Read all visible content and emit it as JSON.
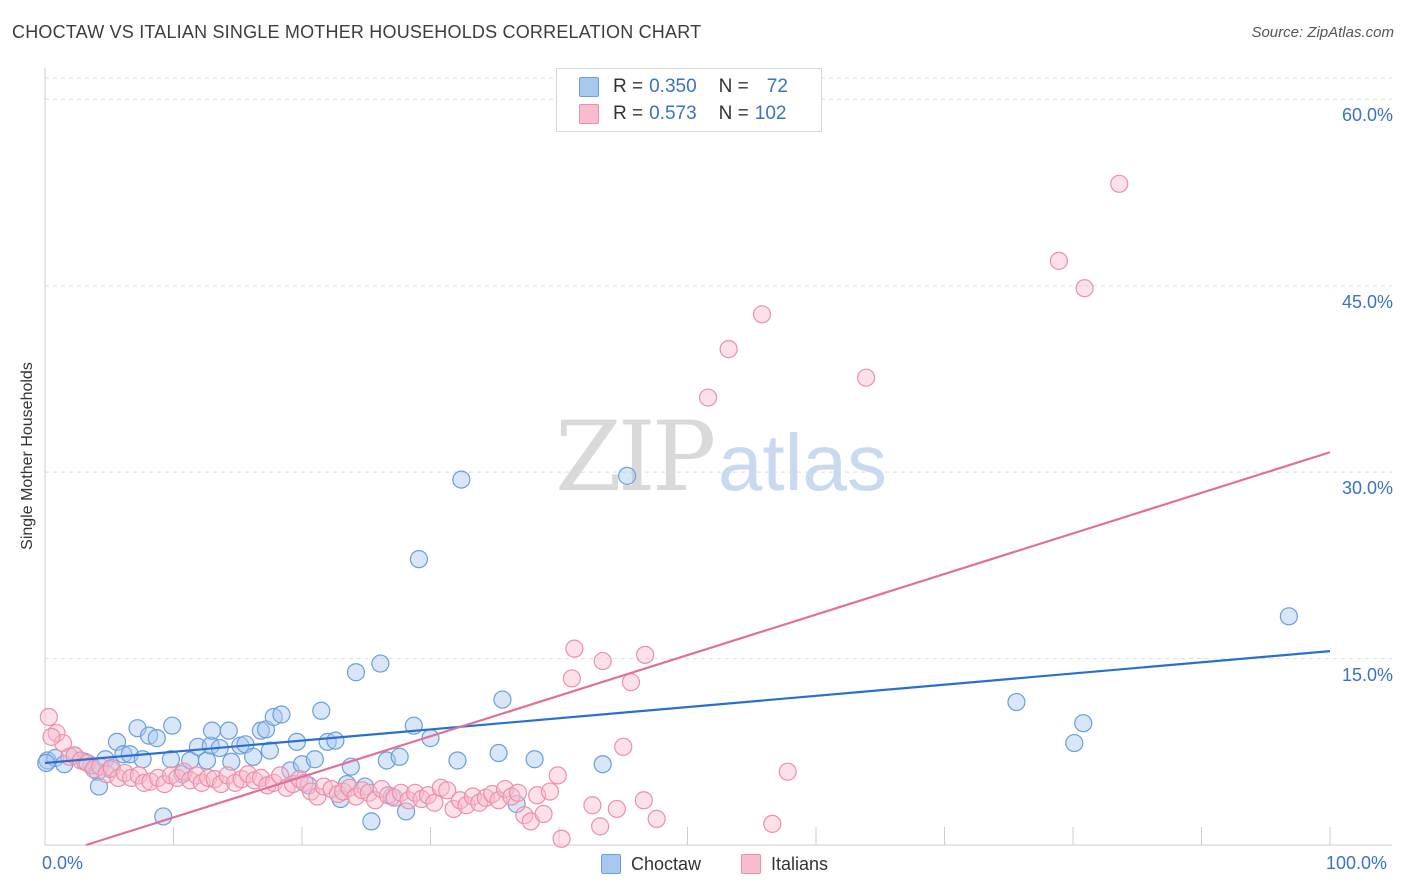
{
  "header": {
    "title": "CHOCTAW VS ITALIAN SINGLE MOTHER HOUSEHOLDS CORRELATION CHART",
    "source": "Source: ZipAtlas.com"
  },
  "watermark": {
    "zip": "ZIP",
    "atlas": "atlas"
  },
  "legend": {
    "choctaw": {
      "r_label": "R =",
      "r_value": "0.350",
      "n_label": "N =",
      "n_value": "72"
    },
    "italians": {
      "r_label": "R =",
      "r_value": "0.573",
      "n_label": "N =",
      "n_value": "102"
    }
  },
  "colors": {
    "choctaw_fill": "#a9c8f0",
    "choctaw_stroke": "#6a9fdc",
    "choctaw_line": "#2a6fcf",
    "italians_fill": "#f8bccd",
    "italians_stroke": "#ec8fab",
    "italians_line": "#e0709a",
    "grid": "#dddddd",
    "tick_text": "#3a72c4"
  },
  "chart_data": {
    "type": "scatter",
    "title": "CHOCTAW VS ITALIAN SINGLE MOTHER HOUSEHOLDS CORRELATION CHART",
    "xlabel": "",
    "ylabel": "Single Mother Households",
    "xlim": [
      0,
      100
    ],
    "ylim": [
      0,
      63
    ],
    "x_ticks": [
      "0.0%",
      "100.0%"
    ],
    "y_ticks": [
      {
        "value": 15,
        "label": "15.0%"
      },
      {
        "value": 30,
        "label": "30.0%"
      },
      {
        "value": 45,
        "label": "45.0%"
      },
      {
        "value": 60,
        "label": "60.0%"
      }
    ],
    "series": [
      {
        "name": "Choctaw",
        "trend": [
          [
            0,
            6.6
          ],
          [
            100,
            15.6
          ]
        ],
        "points": [
          [
            0.2,
            6.8
          ],
          [
            0.8,
            7.0
          ],
          [
            1.5,
            6.5
          ],
          [
            2.3,
            7.2
          ],
          [
            3.1,
            6.7
          ],
          [
            3.6,
            6.4
          ],
          [
            4.1,
            5.9
          ],
          [
            4.2,
            4.7
          ],
          [
            4.7,
            6.9
          ],
          [
            5.1,
            6.1
          ],
          [
            5.6,
            8.3
          ],
          [
            6.1,
            7.3
          ],
          [
            6.6,
            7.3
          ],
          [
            7.2,
            9.4
          ],
          [
            7.6,
            6.9
          ],
          [
            8.1,
            8.8
          ],
          [
            8.7,
            8.6
          ],
          [
            9.2,
            2.3
          ],
          [
            9.8,
            6.9
          ],
          [
            9.9,
            9.6
          ],
          [
            10.7,
            5.7
          ],
          [
            11.3,
            6.8
          ],
          [
            11.9,
            7.9
          ],
          [
            12.6,
            6.8
          ],
          [
            12.9,
            8.0
          ],
          [
            13.0,
            9.2
          ],
          [
            13.6,
            7.8
          ],
          [
            14.3,
            9.2
          ],
          [
            14.5,
            6.7
          ],
          [
            15.2,
            8.0
          ],
          [
            15.6,
            8.1
          ],
          [
            16.2,
            7.1
          ],
          [
            16.8,
            9.2
          ],
          [
            17.2,
            9.3
          ],
          [
            17.5,
            7.6
          ],
          [
            17.8,
            10.3
          ],
          [
            18.4,
            10.5
          ],
          [
            19.1,
            6.0
          ],
          [
            19.6,
            8.3
          ],
          [
            20.0,
            6.5
          ],
          [
            20.5,
            4.8
          ],
          [
            21.0,
            6.9
          ],
          [
            21.5,
            10.8
          ],
          [
            22.0,
            8.3
          ],
          [
            22.6,
            8.4
          ],
          [
            23.0,
            3.7
          ],
          [
            23.5,
            4.9
          ],
          [
            23.8,
            6.3
          ],
          [
            24.2,
            13.9
          ],
          [
            24.9,
            4.7
          ],
          [
            25.4,
            1.9
          ],
          [
            26.1,
            14.6
          ],
          [
            26.6,
            6.8
          ],
          [
            27.0,
            3.9
          ],
          [
            27.6,
            7.1
          ],
          [
            28.1,
            2.7
          ],
          [
            28.7,
            9.6
          ],
          [
            29.1,
            23.0
          ],
          [
            30.0,
            8.6
          ],
          [
            32.1,
            6.8
          ],
          [
            32.4,
            29.4
          ],
          [
            35.3,
            7.4
          ],
          [
            35.6,
            11.7
          ],
          [
            36.7,
            3.3
          ],
          [
            38.1,
            6.9
          ],
          [
            43.4,
            6.5
          ],
          [
            45.3,
            29.7
          ],
          [
            75.6,
            11.5
          ],
          [
            80.1,
            8.2
          ],
          [
            80.8,
            9.8
          ],
          [
            96.8,
            18.4
          ],
          [
            0.1,
            6.6
          ]
        ]
      },
      {
        "name": "Italians",
        "trend": [
          [
            3.2,
            0
          ],
          [
            100,
            31.6
          ]
        ],
        "points": [
          [
            0.3,
            10.3
          ],
          [
            0.9,
            9.0
          ],
          [
            1.4,
            8.2
          ],
          [
            1.9,
            7.1
          ],
          [
            2.3,
            7.2
          ],
          [
            2.8,
            6.8
          ],
          [
            3.3,
            6.6
          ],
          [
            3.8,
            6.1
          ],
          [
            4.3,
            6.3
          ],
          [
            4.8,
            5.7
          ],
          [
            5.2,
            6.2
          ],
          [
            5.7,
            5.4
          ],
          [
            6.2,
            5.8
          ],
          [
            6.7,
            5.4
          ],
          [
            7.3,
            5.6
          ],
          [
            7.7,
            5.0
          ],
          [
            8.2,
            5.1
          ],
          [
            8.8,
            5.4
          ],
          [
            9.3,
            4.9
          ],
          [
            9.8,
            5.6
          ],
          [
            10.3,
            5.4
          ],
          [
            10.8,
            5.9
          ],
          [
            11.3,
            5.2
          ],
          [
            11.8,
            5.6
          ],
          [
            12.2,
            5.0
          ],
          [
            12.7,
            5.4
          ],
          [
            13.2,
            5.3
          ],
          [
            13.7,
            4.9
          ],
          [
            14.2,
            5.6
          ],
          [
            14.8,
            5.0
          ],
          [
            15.3,
            5.3
          ],
          [
            15.8,
            5.7
          ],
          [
            16.3,
            5.2
          ],
          [
            16.8,
            5.4
          ],
          [
            17.3,
            4.8
          ],
          [
            17.8,
            5.0
          ],
          [
            18.3,
            5.6
          ],
          [
            18.8,
            4.6
          ],
          [
            19.3,
            4.9
          ],
          [
            19.8,
            5.3
          ],
          [
            20.2,
            5.0
          ],
          [
            20.7,
            4.3
          ],
          [
            21.2,
            3.9
          ],
          [
            21.7,
            4.7
          ],
          [
            22.3,
            4.5
          ],
          [
            22.8,
            4.1
          ],
          [
            23.2,
            4.3
          ],
          [
            23.7,
            4.6
          ],
          [
            24.2,
            3.9
          ],
          [
            24.7,
            4.4
          ],
          [
            25.2,
            4.2
          ],
          [
            25.7,
            3.6
          ],
          [
            26.2,
            4.5
          ],
          [
            26.7,
            4.0
          ],
          [
            27.2,
            3.8
          ],
          [
            27.7,
            4.2
          ],
          [
            28.3,
            3.6
          ],
          [
            28.8,
            4.2
          ],
          [
            29.3,
            3.7
          ],
          [
            29.8,
            4.0
          ],
          [
            30.3,
            3.4
          ],
          [
            30.8,
            4.6
          ],
          [
            31.3,
            4.4
          ],
          [
            31.8,
            2.9
          ],
          [
            32.3,
            3.6
          ],
          [
            32.8,
            3.2
          ],
          [
            33.3,
            3.9
          ],
          [
            33.8,
            3.4
          ],
          [
            34.3,
            3.8
          ],
          [
            34.8,
            4.1
          ],
          [
            35.3,
            3.6
          ],
          [
            35.8,
            4.5
          ],
          [
            36.3,
            3.9
          ],
          [
            36.8,
            4.2
          ],
          [
            37.3,
            2.4
          ],
          [
            37.8,
            1.9
          ],
          [
            38.3,
            4.0
          ],
          [
            38.8,
            2.5
          ],
          [
            39.3,
            4.3
          ],
          [
            39.9,
            5.6
          ],
          [
            40.2,
            0.5
          ],
          [
            41.0,
            13.4
          ],
          [
            41.2,
            15.8
          ],
          [
            42.6,
            3.2
          ],
          [
            43.2,
            1.5
          ],
          [
            43.4,
            14.8
          ],
          [
            44.5,
            2.9
          ],
          [
            45.0,
            7.9
          ],
          [
            45.6,
            13.1
          ],
          [
            46.6,
            3.6
          ],
          [
            46.7,
            15.3
          ],
          [
            47.6,
            2.1
          ],
          [
            51.6,
            36.0
          ],
          [
            53.2,
            39.9
          ],
          [
            55.8,
            42.7
          ],
          [
            56.6,
            1.7
          ],
          [
            57.8,
            5.9
          ],
          [
            63.9,
            37.6
          ],
          [
            78.9,
            47.0
          ],
          [
            80.9,
            44.8
          ],
          [
            83.6,
            53.2
          ],
          [
            0.5,
            8.7
          ]
        ]
      }
    ]
  }
}
